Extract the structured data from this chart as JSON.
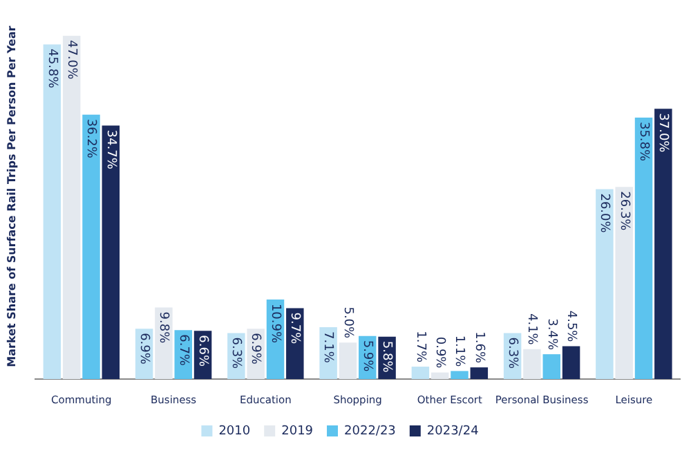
{
  "chart_data": {
    "type": "bar",
    "ylabel": "Market Share of Surface Rail Trips Per Person Per Year",
    "categories": [
      "Commuting",
      "Business",
      "Education",
      "Shopping",
      "Other Escort",
      "Personal Business",
      "Leisure"
    ],
    "series": [
      {
        "name": "2010",
        "color": "#bfe3f5",
        "values": [
          45.8,
          6.9,
          6.3,
          7.1,
          1.7,
          6.3,
          26.0
        ],
        "value_labels": [
          "45.8%",
          "6.9%",
          "6.3%",
          "7.1%",
          "1.7%",
          "6.3%",
          "26.0%"
        ]
      },
      {
        "name": "2019",
        "color": "#e4e9ef",
        "values": [
          47.0,
          9.8,
          6.9,
          5.0,
          0.9,
          4.1,
          26.3
        ],
        "value_labels": [
          "47.0%",
          "9.8%",
          "6.9%",
          "5.0%",
          "0.9%",
          "4.1%",
          "26.3%"
        ]
      },
      {
        "name": "2022/23",
        "color": "#5cc3ee",
        "values": [
          36.2,
          6.7,
          10.9,
          5.9,
          1.1,
          3.4,
          35.8
        ],
        "value_labels": [
          "36.2%",
          "6.7%",
          "10.9%",
          "5.9%",
          "1.1%",
          "3.4%",
          "35.8%"
        ]
      },
      {
        "name": "2023/24",
        "color": "#1b2a5c",
        "values": [
          34.7,
          6.6,
          9.7,
          5.8,
          1.6,
          4.5,
          37.0
        ],
        "value_labels": [
          "34.7%",
          "6.6%",
          "9.7%",
          "5.8%",
          "1.6%",
          "4.5%",
          "37.0%"
        ]
      }
    ],
    "legend": "bottom",
    "grid": false
  }
}
